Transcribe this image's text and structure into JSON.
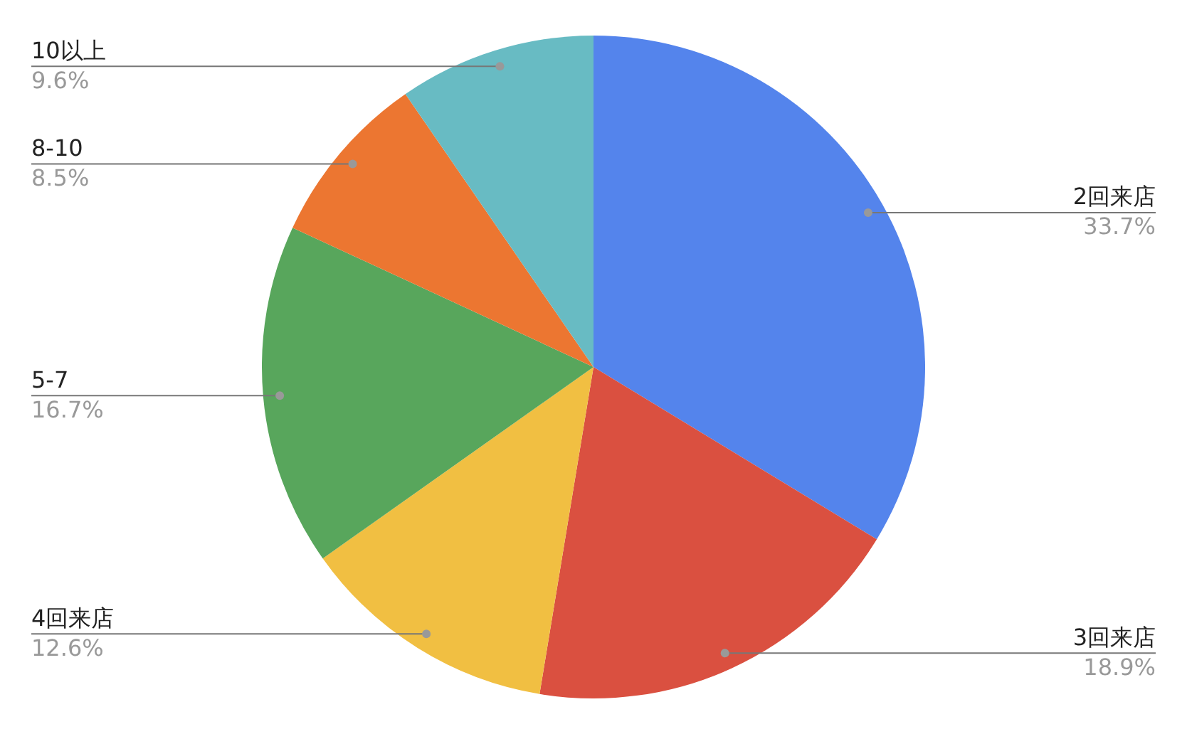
{
  "chart_data": {
    "type": "pie",
    "categories": [
      "2回来店",
      "3回来店",
      "4回来店",
      "5-7",
      "8-10",
      "10以上"
    ],
    "values": [
      33.7,
      18.9,
      12.6,
      16.7,
      8.5,
      9.6
    ],
    "colors": [
      "#5484ec",
      "#da5040",
      "#f1bf42",
      "#58a65c",
      "#ec7631",
      "#68bbc3"
    ],
    "value_labels": [
      "33.7%",
      "18.9%",
      "12.6%",
      "16.7%",
      "8.5%",
      "9.6%"
    ],
    "legend": false
  }
}
